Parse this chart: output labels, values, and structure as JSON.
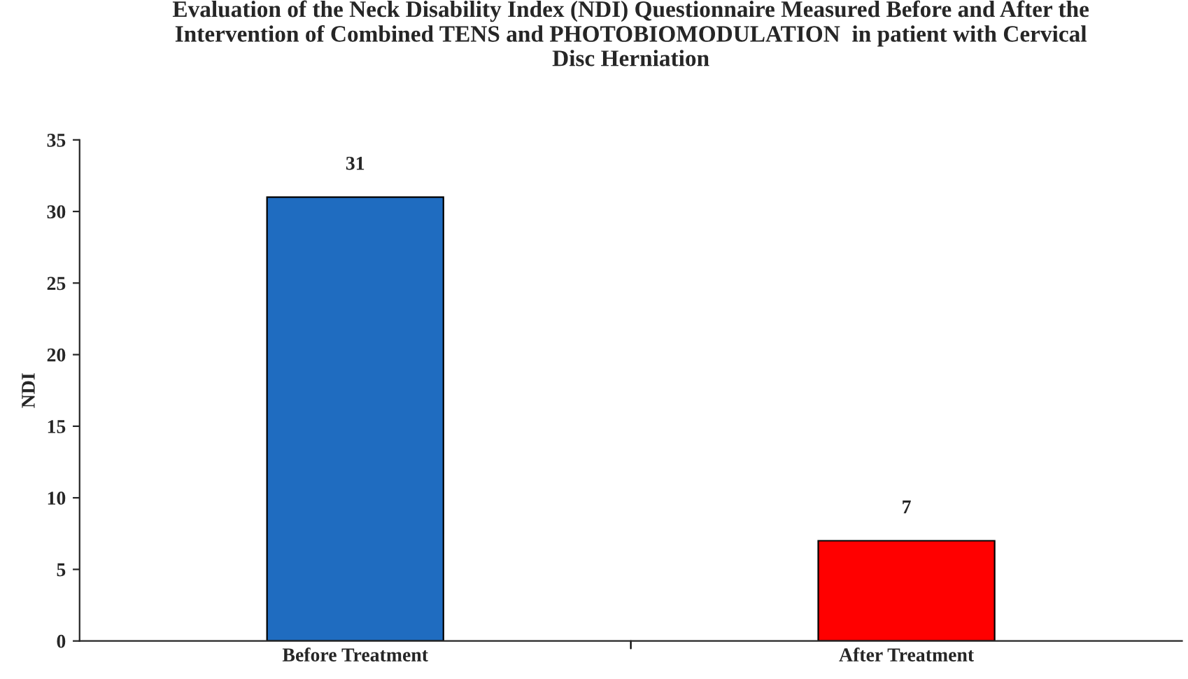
{
  "chart_data": {
    "type": "bar",
    "title": "Evaluation of the Neck Disability Index (NDI) Questionnaire Measured Before and After the\nIntervention of Combined TENS and PHOTOBIOMODULATION  in patient with Cervical\nDisc Herniation",
    "ylabel": "NDI",
    "categories": [
      "Before Treatment",
      "After Treatment"
    ],
    "values": [
      31,
      7
    ],
    "colors": [
      "#1f6cc0",
      "#ff0000"
    ],
    "ylim": [
      0,
      35
    ],
    "yticks": [
      0,
      5,
      10,
      15,
      20,
      25,
      30,
      35
    ],
    "data_labels": true,
    "grid": false,
    "legend": false
  }
}
